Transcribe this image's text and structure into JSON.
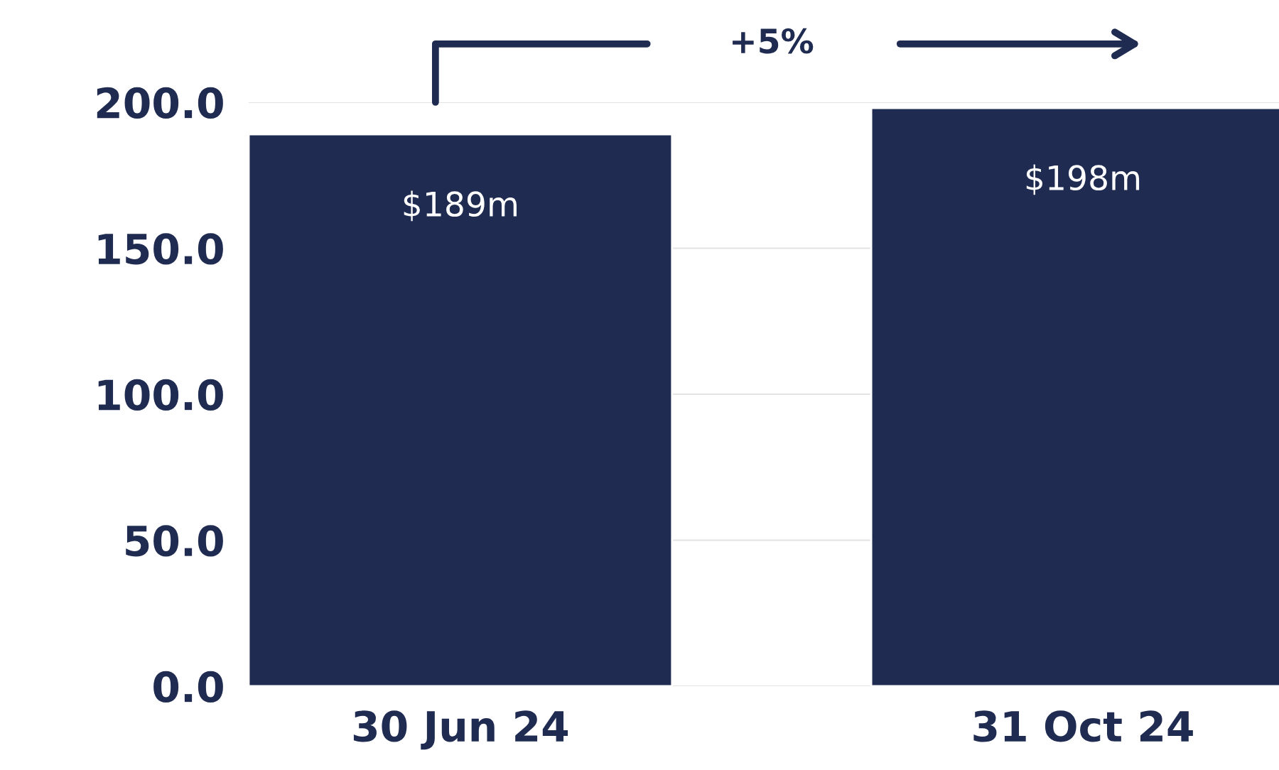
{
  "chart_data": {
    "type": "bar",
    "categories": [
      "30 Jun 24",
      "31 Oct 24"
    ],
    "values": [
      189,
      198
    ],
    "value_labels": [
      "$189m",
      "$198m"
    ],
    "color": "#1f2b50",
    "ylim": [
      0,
      200
    ],
    "yticks": [
      {
        "value": 0,
        "label": "0.0"
      },
      {
        "value": 50,
        "label": "50.0"
      },
      {
        "value": 100,
        "label": "100.0"
      },
      {
        "value": 150,
        "label": "150.0"
      },
      {
        "value": 200,
        "label": "200.0"
      }
    ],
    "grid": "y",
    "annotations": [
      "+5%"
    ]
  }
}
